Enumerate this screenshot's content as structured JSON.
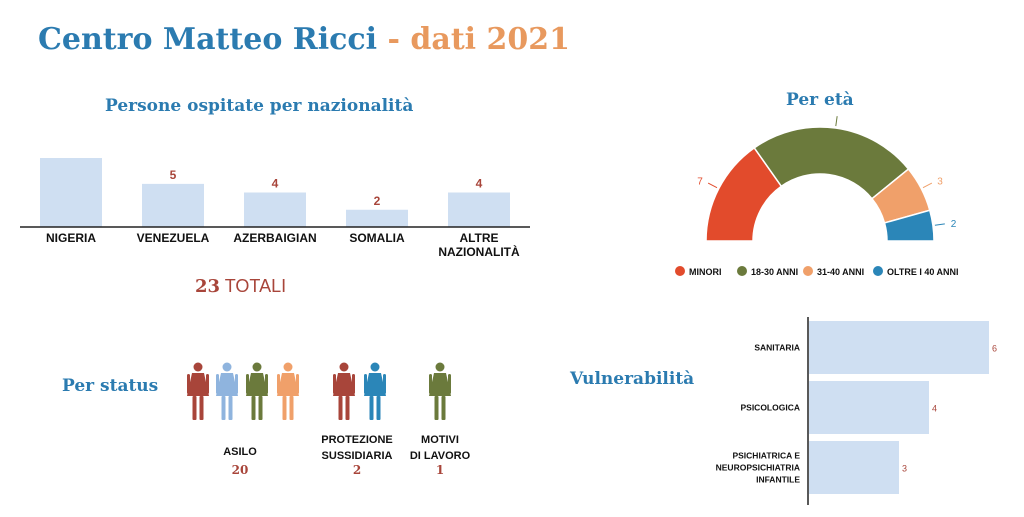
{
  "header": {
    "title_main": "Centro Matteo Ricci",
    "title_sep": " - ",
    "title_year": "dati 2021"
  },
  "colors": {
    "blue": "#2b7bb0",
    "orange": "#e8995e",
    "red": "#a8453a",
    "green": "#6b7a3c",
    "lightblue": "#cfdff2",
    "person_light": "#8fb4de",
    "person_orange": "#f0a06a",
    "age_red": "#e24b2c",
    "age_green": "#6b7a3c",
    "age_orange": "#f0a06a",
    "age_blue": "#2b86b8"
  },
  "nationality": {
    "title": "Persone ospitate per nazionalità",
    "totals_value": "23",
    "totals_label": " TOTALI"
  },
  "age": {
    "title": "Per età"
  },
  "status": {
    "title": "Per status",
    "groups": [
      {
        "label_line1": "ASILO",
        "label_line2": "",
        "value": "20",
        "icons": [
          "red",
          "person_light",
          "green",
          "person_orange"
        ]
      },
      {
        "label_line1": "PROTEZIONE",
        "label_line2": "SUSSIDIARIA",
        "value": "2",
        "icons": [
          "red",
          "age_blue"
        ]
      },
      {
        "label_line1": "MOTIVI",
        "label_line2": "DI LAVORO",
        "value": "1",
        "icons": [
          "green"
        ]
      }
    ]
  },
  "vulnerability": {
    "title": "Vulnerabilità"
  },
  "chart_data": [
    {
      "type": "bar",
      "title": "Persone ospitate per nazionalità",
      "categories": [
        "NIGERIA",
        "VENEZUELA",
        "AZERBAIGIAN",
        "SOMALIA",
        "ALTRE NAZIONALITÀ"
      ],
      "category_lines": [
        [
          "NIGERIA"
        ],
        [
          "VENEZUELA"
        ],
        [
          "AZERBAIGIAN"
        ],
        [
          "SOMALIA"
        ],
        [
          "ALTRE",
          "NAZIONALITÀ"
        ]
      ],
      "values": [
        8,
        5,
        4,
        2,
        4
      ],
      "value_labels": [
        "",
        "5",
        "4",
        "2",
        "4"
      ],
      "ylim": [
        0,
        8
      ]
    },
    {
      "type": "pie",
      "variant": "semicircle-donut",
      "title": "Per età",
      "categories": [
        "MINORI",
        "18-30 ANNI",
        "31-40 ANNI",
        "OLTRE I 40 ANNI"
      ],
      "values": [
        7,
        11,
        3,
        2
      ],
      "colors": [
        "#e24b2c",
        "#6b7a3c",
        "#f0a06a",
        "#2b86b8"
      ],
      "legend": "bottom"
    },
    {
      "type": "bar",
      "orientation": "horizontal",
      "title": "Vulnerabilità",
      "categories": [
        "SANITARIA",
        "PSICOLOGICA",
        "PSICHIATRICA E NEUROPSICHIATRIA INFANTILE"
      ],
      "category_lines": [
        [
          "SANITARIA"
        ],
        [
          "PSICOLOGICA"
        ],
        [
          "PSICHIATRICA E",
          "NEUROPSICHIATRIA",
          "INFANTILE"
        ]
      ],
      "values": [
        6,
        4,
        3
      ],
      "xlim": [
        0,
        6
      ]
    }
  ]
}
